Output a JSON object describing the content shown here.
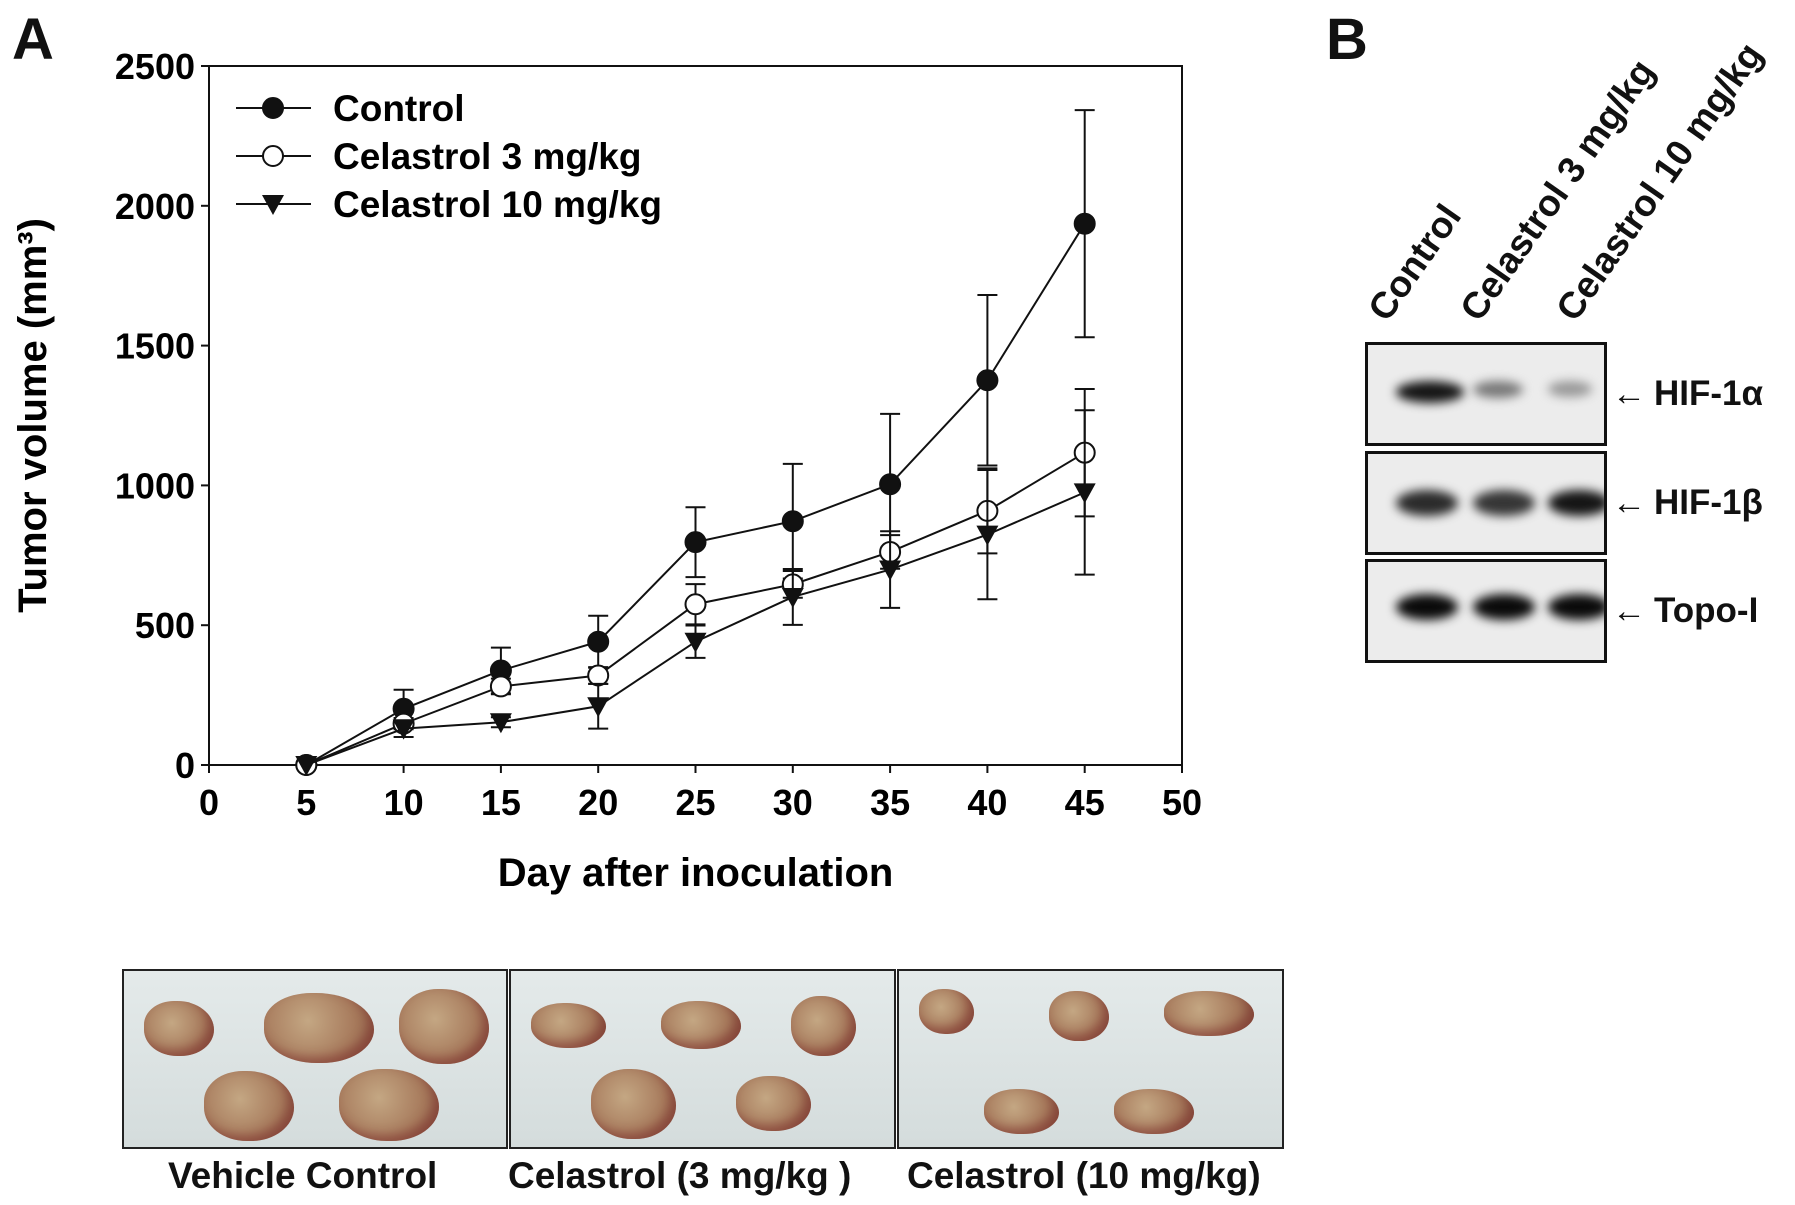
{
  "panel_a_label": "A",
  "panel_b_label": "B",
  "chart_data": {
    "type": "line",
    "title": "",
    "xlabel": "Day after inoculation",
    "ylabel": "Tumor volume (mm³)",
    "xlim": [
      0,
      50
    ],
    "ylim": [
      0,
      2500
    ],
    "xticks": [
      0,
      5,
      10,
      15,
      20,
      25,
      30,
      35,
      40,
      45,
      50
    ],
    "yticks": [
      0,
      500,
      1000,
      1500,
      2000,
      2500
    ],
    "legend_position": "top-left",
    "grid": false,
    "x": [
      5,
      10,
      15,
      20,
      25,
      30,
      35,
      40,
      45
    ],
    "series": [
      {
        "name": "Control",
        "marker": "filled-circle",
        "values": [
          0,
          201,
          338,
          441,
          797,
          872,
          1004,
          1376,
          1936
        ],
        "errors": [
          0,
          68,
          82,
          93,
          125,
          205,
          252,
          305,
          406
        ]
      },
      {
        "name": "Celastrol 3 mg/kg",
        "marker": "open-circle",
        "values": [
          0,
          148,
          281,
          320,
          575,
          646,
          762,
          909,
          1117
        ],
        "errors": [
          0,
          20,
          28,
          30,
          72,
          48,
          60,
          152,
          228
        ]
      },
      {
        "name": "Celastrol 10 mg/kg",
        "marker": "filled-triangle-down",
        "values": [
          0,
          130,
          153,
          210,
          441,
          601,
          699,
          824,
          975
        ],
        "errors": [
          0,
          30,
          18,
          80,
          58,
          100,
          137,
          231,
          294
        ]
      }
    ]
  },
  "blot": {
    "lanes": [
      "Control",
      "Celastrol 3 mg/kg",
      "Celastrol 10 mg/kg"
    ],
    "rows": [
      {
        "label": "HIF-1α",
        "intensities": [
          0.95,
          0.5,
          0.35
        ]
      },
      {
        "label": "HIF-1β",
        "intensities": [
          0.85,
          0.8,
          0.95
        ]
      },
      {
        "label": "Topo-I",
        "intensities": [
          1.0,
          1.0,
          1.0
        ]
      }
    ],
    "arrow": "←"
  },
  "photos": [
    {
      "label": "Vehicle Control"
    },
    {
      "label": "Celastrol (3 mg/kg )"
    },
    {
      "label": "Celastrol (10 mg/kg)"
    }
  ]
}
